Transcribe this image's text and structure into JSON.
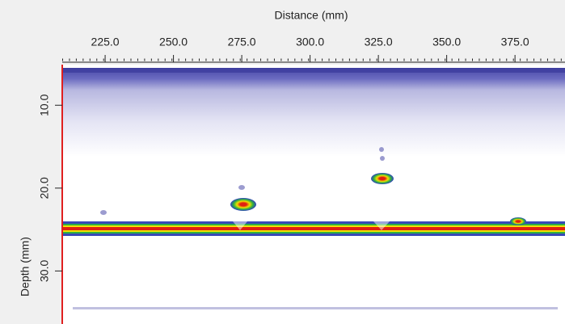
{
  "chart_data": {
    "type": "bscan",
    "xlabel": "Distance (mm)",
    "ylabel": "Depth (mm)",
    "xlim": [
      209.3,
      393.3
    ],
    "xticks": [
      {
        "value": 225,
        "label": "225.0"
      },
      {
        "value": 250,
        "label": "250.0"
      },
      {
        "value": 275,
        "label": "275.0"
      },
      {
        "value": 300,
        "label": "300.0"
      },
      {
        "value": 325,
        "label": "325.0"
      },
      {
        "value": 350,
        "label": "350.0"
      },
      {
        "value": 375,
        "label": "375.0"
      }
    ],
    "ylim": [
      5.1,
      36.4
    ],
    "yticks": [
      {
        "value": 10,
        "label": "10.0"
      },
      {
        "value": 20,
        "label": "20.0"
      },
      {
        "value": 30,
        "label": "30.0"
      }
    ]
  }
}
